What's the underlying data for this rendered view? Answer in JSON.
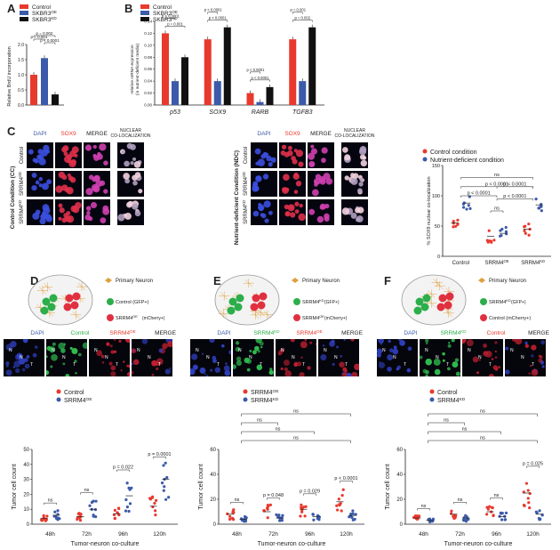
{
  "labels": {
    "A": "A",
    "B": "B",
    "C": "C",
    "D": "D",
    "E": "E",
    "F": "F"
  },
  "panelA": {
    "legend": [
      {
        "label": "Control",
        "color": "#e8392d"
      },
      {
        "label": "SKBR3",
        "sup": "OE",
        "color": "#3b5aa9"
      },
      {
        "label": "SKBR3",
        "sup": "KD",
        "color": "#111111"
      }
    ],
    "ylabel": "Relative BrdU incorporation",
    "pvals": [
      "p = 0.001",
      "p = 0.002",
      "p < 0.0001"
    ],
    "yticks": [
      "0.0",
      "0.5",
      "1.0",
      "1.5",
      "2.0"
    ]
  },
  "panelB": {
    "legend": [
      {
        "label": "Control",
        "color": "#e8392d"
      },
      {
        "label": "SKBR3",
        "sup": "OE",
        "color": "#3b5aa9"
      },
      {
        "label": "SKBR3",
        "sup": "KD",
        "color": "#111111"
      }
    ],
    "ylabel": "relative mRNA expression\n(in nutrient-deficient media)",
    "genes": [
      "p53",
      "SOX9",
      "RARB",
      "TGFB3"
    ],
    "pvals": [
      "p = 0.001",
      "p < 0.0001",
      "p < 0.0001",
      "p < 0.0001",
      "p < 0.0001",
      "p < 0.0001",
      "p = 0.002",
      "p = 0.001",
      "p < 0.0001",
      "p < 0.0001"
    ]
  },
  "panelC": {
    "left": {
      "cols": [
        "DAPI",
        "SOX9",
        "MERGE",
        "NUCLEAR\nCO-LOCALIZATION"
      ],
      "side": "Control Condition (CC)",
      "rows": [
        "Control",
        "SRRM4",
        "SRRM4"
      ],
      "rowsup": [
        "",
        "OE",
        "KD"
      ]
    },
    "right": {
      "cols": [
        "DAPI",
        "SOX9",
        "MERGE",
        "NUCLEAR\nCO-LOCALIZATION"
      ],
      "side": "Nutrient-deficient Condition (NDC)",
      "rows": [
        "Control",
        "SRRM4",
        "SRRM4"
      ],
      "rowsup": [
        "",
        "OE",
        "KD"
      ]
    },
    "legend": [
      {
        "label": "Control condition",
        "color": "#e8392d"
      },
      {
        "label": "Nutrient-deficient condition",
        "color": "#3b5aa9"
      }
    ],
    "ylabel": "% SOX9 nuclear co-localization",
    "yticks": [
      "0",
      "50",
      "100",
      "150"
    ],
    "categories": [
      "Control",
      "SRRM4",
      "SRRM4"
    ],
    "catsup": [
      "",
      "OE",
      "KD"
    ],
    "pvals": [
      "p < 0.0001",
      "p < 0.0001",
      "p < 0.0001",
      "ns",
      "p < 0.0001",
      "ns"
    ]
  },
  "panelD": {
    "schematic": [
      "Primary Neuron",
      "Control (GFP+)",
      "SRRM4",
      "OE",
      "(mCherry+)"
    ],
    "mics": [
      {
        "l": "DAPI",
        "c": "#3b5aa9"
      },
      {
        "l": "Control",
        "c": "#2cae4a"
      },
      {
        "l": "SRRM4",
        "sup": "OE",
        "c": "#e8392d"
      },
      {
        "l": "MERGE",
        "c": "#222"
      }
    ],
    "legend": [
      {
        "label": "Control",
        "color": "#e8392d"
      },
      {
        "label": "SRRM4",
        "sup": "OE",
        "color": "#3b5aa9"
      }
    ],
    "ylabel": "Tumor cell count",
    "xlabel": "Tumor-neuron co-culture",
    "times": [
      "48h",
      "72h",
      "96h",
      "120h"
    ],
    "yticks": [
      "0",
      "10",
      "20",
      "30",
      "40",
      "50"
    ],
    "pvals": [
      "ns",
      "ns",
      "p = 0.022",
      "p = 0.0001"
    ]
  },
  "panelE": {
    "schematic": [
      "Primary Neuron",
      "SRRM4",
      "KD",
      "(GFP+)",
      "SRRM4",
      "OE",
      "(mCherry+)"
    ],
    "mics": [
      {
        "l": "DAPI",
        "c": "#3b5aa9"
      },
      {
        "l": "SRRM4",
        "sup": "KD",
        "c": "#2cae4a"
      },
      {
        "l": "SRRM4",
        "sup": "OE",
        "c": "#e8392d"
      },
      {
        "l": "MERGE",
        "c": "#222"
      }
    ],
    "legend": [
      {
        "label": "SRRM4",
        "sup": "OE",
        "color": "#e8392d"
      },
      {
        "label": "SRRM4",
        "sup": "KD",
        "color": "#3b5aa9"
      }
    ],
    "ylabel": "Tumor cell count",
    "xlabel": "Tumor-neuron co-culture",
    "times": [
      "48h",
      "72h",
      "96h",
      "120h"
    ],
    "yticks": [
      "0",
      "20",
      "40",
      "60"
    ],
    "pvals": [
      "ns",
      "p = 0.048",
      "p = 0.029",
      "p < 0.0001",
      "ns",
      "ns",
      "ns",
      "ns"
    ]
  },
  "panelF": {
    "schematic": [
      "Primary Neuron",
      "SRRM4",
      "KD",
      "(GFP+)",
      "Control (mCherry+)"
    ],
    "mics": [
      {
        "l": "DAPI",
        "c": "#3b5aa9"
      },
      {
        "l": "SRRM4",
        "sup": "KD",
        "c": "#2cae4a"
      },
      {
        "l": "Control",
        "c": "#e8392d"
      },
      {
        "l": "MERGE",
        "c": "#222"
      }
    ],
    "legend": [
      {
        "label": "Control",
        "color": "#e8392d"
      },
      {
        "label": "SRRM4",
        "sup": "KD",
        "color": "#3b5aa9"
      }
    ],
    "ylabel": "Tumor cell count",
    "xlabel": "Tumor-neuron co-culture",
    "times": [
      "48h",
      "72h",
      "96h",
      "120h"
    ],
    "yticks": [
      "0",
      "20",
      "40",
      "60"
    ],
    "pvals": [
      "ns",
      "ns",
      "ns",
      "p = 0.025",
      "ns",
      "ns",
      "ns",
      "ns"
    ]
  },
  "colors": {
    "red": "#e8392d",
    "blue": "#3b5aa9",
    "black": "#111111",
    "green": "#2cae4a",
    "neuron": "#e0a040"
  },
  "chart_data": [
    {
      "type": "bar",
      "title": "",
      "ylabel": "Relative BrdU incorporation",
      "categories": [
        "Control",
        "SKBR3 OE",
        "SKBR3 KD"
      ],
      "values": [
        1.0,
        1.55,
        0.35
      ],
      "ylim": [
        0,
        2.0
      ]
    },
    {
      "type": "bar",
      "ylabel": "relative mRNA expression (in nutrient-deficient media)",
      "categories": [
        "p53",
        "SOX9",
        "RARB",
        "TGFB3"
      ],
      "series": [
        {
          "name": "Control",
          "values": [
            0.12,
            0.11,
            0.02,
            0.11
          ]
        },
        {
          "name": "SKBR3 OE",
          "values": [
            0.04,
            0.04,
            0.005,
            0.04
          ]
        },
        {
          "name": "SKBR3 KD",
          "values": [
            0.08,
            0.13,
            0.03,
            0.13
          ]
        }
      ]
    },
    {
      "type": "scatter",
      "ylabel": "% SOX9 nuclear co-localization",
      "categories": [
        "Control",
        "SRRM4 OE",
        "SRRM4 KD"
      ],
      "series": [
        {
          "name": "Control condition",
          "values": [
            55,
            33,
            45
          ]
        },
        {
          "name": "Nutrient-deficient condition",
          "values": [
            88,
            38,
            85
          ]
        }
      ],
      "ylim": [
        0,
        150
      ]
    },
    {
      "type": "scatter",
      "ylabel": "Tumor cell count",
      "xlabel": "Tumor-neuron co-culture",
      "categories": [
        "48h",
        "72h",
        "96h",
        "120h"
      ],
      "series": [
        {
          "name": "Control",
          "values": [
            4,
            5,
            7,
            12
          ]
        },
        {
          "name": "SRRM4 OE",
          "values": [
            6,
            10,
            19,
            30
          ]
        }
      ],
      "ylim": [
        0,
        50
      ]
    },
    {
      "type": "scatter",
      "ylabel": "Tumor cell count",
      "xlabel": "Tumor-neuron co-culture",
      "categories": [
        "48h",
        "72h",
        "96h",
        "120h"
      ],
      "series": [
        {
          "name": "SRRM4 OE",
          "values": [
            8,
            10,
            12,
            18
          ]
        },
        {
          "name": "SRRM4 KD",
          "values": [
            4,
            5,
            6,
            7
          ]
        }
      ],
      "ylim": [
        0,
        60
      ]
    },
    {
      "type": "scatter",
      "ylabel": "Tumor cell count",
      "xlabel": "Tumor-neuron co-culture",
      "categories": [
        "48h",
        "72h",
        "96h",
        "120h"
      ],
      "series": [
        {
          "name": "Control",
          "values": [
            5,
            8,
            10,
            25
          ]
        },
        {
          "name": "SRRM4 KD",
          "values": [
            3,
            5,
            6,
            8
          ]
        }
      ],
      "ylim": [
        0,
        60
      ]
    }
  ]
}
